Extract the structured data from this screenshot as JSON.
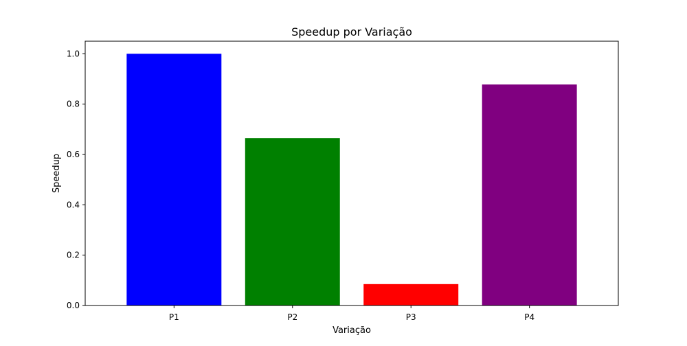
{
  "chart_data": {
    "type": "bar",
    "title": "Speedup por Variação",
    "xlabel": "Variação",
    "ylabel": "Speedup",
    "categories": [
      "P1",
      "P2",
      "P3",
      "P4"
    ],
    "values": [
      1.0,
      0.665,
      0.085,
      0.878
    ],
    "colors": [
      "#0000ff",
      "#008000",
      "#ff0000",
      "#800080"
    ],
    "ylim": [
      0,
      1.05
    ],
    "yticks": [
      0.0,
      0.2,
      0.4,
      0.6,
      0.8,
      1.0
    ],
    "ytick_labels": [
      "0.0",
      "0.2",
      "0.4",
      "0.6",
      "0.8",
      "1.0"
    ],
    "grid": false,
    "legend": "none"
  }
}
